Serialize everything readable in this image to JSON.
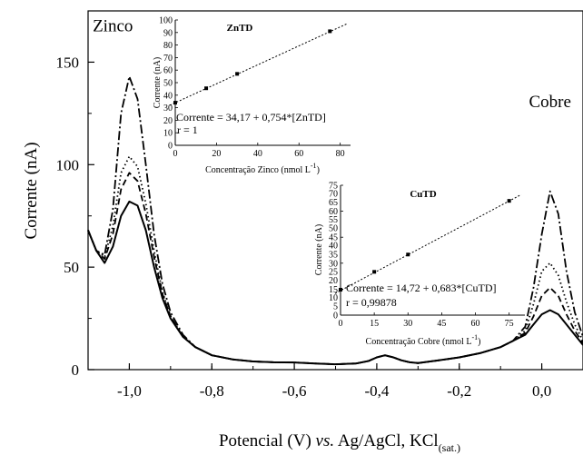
{
  "chart_data": [
    {
      "type": "line",
      "title": "",
      "xlabel": "Potencial (V) vs. Ag/AgCl, KCl(sat.)",
      "ylabel": "Corrente (nA)",
      "xlim": [
        -1.1,
        0.1
      ],
      "ylim": [
        0,
        175
      ],
      "xticks": [
        -1.0,
        -0.8,
        -0.6,
        -0.4,
        -0.2,
        0.0
      ],
      "xtick_labels": [
        "-1,0",
        "-0,8",
        "-0,6",
        "-0,4",
        "-0,2",
        "0,0"
      ],
      "yticks": [
        0,
        50,
        100,
        150
      ],
      "ytick_labels": [
        "0",
        "50",
        "100",
        "150"
      ],
      "annotations": [
        {
          "text": "Zinco",
          "x": -1.04,
          "y": 165
        },
        {
          "text": "Cobre",
          "x": 0.02,
          "y": 128
        }
      ],
      "series": [
        {
          "style": "solid",
          "x": [
            -1.1,
            -1.08,
            -1.06,
            -1.04,
            -1.02,
            -1.0,
            -0.98,
            -0.96,
            -0.94,
            -0.92,
            -0.9,
            -0.87,
            -0.84,
            -0.8,
            -0.75,
            -0.7,
            -0.65,
            -0.6,
            -0.55,
            -0.5,
            -0.45,
            -0.42,
            -0.4,
            -0.38,
            -0.36,
            -0.34,
            -0.32,
            -0.3,
            -0.25,
            -0.2,
            -0.15,
            -0.1,
            -0.07,
            -0.04,
            -0.02,
            0.0,
            0.02,
            0.04,
            0.06,
            0.08,
            0.1
          ],
          "y": [
            68,
            58,
            52,
            60,
            75,
            82,
            80,
            68,
            50,
            35,
            25,
            16,
            11,
            7,
            5,
            4,
            3.6,
            3.5,
            3,
            2.6,
            3,
            4.2,
            6,
            7,
            6,
            4.5,
            3.6,
            3.2,
            4.5,
            6,
            8,
            11,
            14,
            17,
            22,
            27,
            29,
            27,
            22,
            17,
            12
          ]
        },
        {
          "style": "dashed",
          "x": [
            -1.1,
            -1.08,
            -1.06,
            -1.04,
            -1.02,
            -1.0,
            -0.98,
            -0.96,
            -0.94,
            -0.92,
            -0.9,
            -0.87,
            -0.84,
            -0.8,
            -0.75,
            -0.7,
            -0.65,
            -0.6,
            -0.55,
            -0.5,
            -0.45,
            -0.42,
            -0.4,
            -0.38,
            -0.36,
            -0.34,
            -0.32,
            -0.3,
            -0.25,
            -0.2,
            -0.15,
            -0.1,
            -0.07,
            -0.04,
            -0.02,
            0.0,
            0.02,
            0.04,
            0.06,
            0.08,
            0.1
          ],
          "y": [
            68,
            58,
            54,
            66,
            88,
            96,
            92,
            76,
            55,
            37,
            26,
            16,
            11,
            7,
            5,
            4,
            3.6,
            3.5,
            3,
            2.6,
            3,
            4.2,
            6,
            7,
            6,
            4.5,
            3.6,
            3.2,
            4.5,
            6,
            8,
            11,
            14,
            18,
            26,
            36,
            40,
            36,
            27,
            19,
            13
          ]
        },
        {
          "style": "dotted",
          "x": [
            -1.1,
            -1.08,
            -1.06,
            -1.04,
            -1.02,
            -1.0,
            -0.98,
            -0.96,
            -0.94,
            -0.92,
            -0.9,
            -0.87,
            -0.84,
            -0.8,
            -0.75,
            -0.7,
            -0.65,
            -0.6,
            -0.55,
            -0.5,
            -0.45,
            -0.42,
            -0.4,
            -0.38,
            -0.36,
            -0.34,
            -0.32,
            -0.3,
            -0.25,
            -0.2,
            -0.15,
            -0.1,
            -0.07,
            -0.04,
            -0.02,
            0.0,
            0.02,
            0.04,
            0.06,
            0.08,
            0.1
          ],
          "y": [
            68,
            58,
            55,
            70,
            96,
            104,
            99,
            81,
            58,
            38,
            26,
            16,
            11,
            7,
            5,
            4,
            3.6,
            3.5,
            3,
            2.6,
            3,
            4.2,
            6,
            7,
            6,
            4.5,
            3.6,
            3.2,
            4.5,
            6,
            8,
            11,
            14,
            19,
            32,
            48,
            52,
            46,
            33,
            22,
            14
          ]
        },
        {
          "style": "dashdot",
          "x": [
            -1.1,
            -1.08,
            -1.06,
            -1.04,
            -1.02,
            -1.0,
            -0.98,
            -0.96,
            -0.94,
            -0.92,
            -0.9,
            -0.87,
            -0.84,
            -0.8,
            -0.75,
            -0.7,
            -0.65,
            -0.6,
            -0.55,
            -0.5,
            -0.45,
            -0.42,
            -0.4,
            -0.38,
            -0.36,
            -0.34,
            -0.32,
            -0.3,
            -0.25,
            -0.2,
            -0.15,
            -0.1,
            -0.07,
            -0.04,
            -0.02,
            0.0,
            0.02,
            0.04,
            0.06,
            0.08,
            0.1
          ],
          "y": [
            68,
            58,
            56,
            78,
            125,
            143,
            132,
            100,
            66,
            42,
            28,
            17,
            11,
            7,
            5,
            4,
            3.6,
            3.5,
            3,
            2.6,
            3,
            4.2,
            6,
            7,
            6,
            4.5,
            3.6,
            3.2,
            4.5,
            6,
            8,
            11,
            14,
            21,
            40,
            66,
            87,
            76,
            48,
            28,
            16
          ]
        }
      ]
    },
    {
      "type": "scatter",
      "title": "ZnTD",
      "xlabel": "Concentração Zinco (nmol L",
      "xlabel_sup": "-1",
      "xlabel_close": ")",
      "ylabel": "Corrente (nA)",
      "xlim": [
        0,
        85
      ],
      "ylim": [
        0,
        100
      ],
      "xticks": [
        0,
        20,
        40,
        60,
        80
      ],
      "xtick_labels": [
        "0",
        "20",
        "40",
        "60",
        "80"
      ],
      "yticks": [
        0,
        10,
        20,
        30,
        40,
        50,
        60,
        70,
        80,
        90,
        100
      ],
      "ytick_labels": [
        "0",
        "10",
        "20",
        "30",
        "40",
        "50",
        "60",
        "70",
        "80",
        "90",
        "100"
      ],
      "x": [
        0,
        15,
        30,
        75
      ],
      "y": [
        34,
        45.5,
        57,
        91
      ],
      "fit": {
        "intercept": 34.17,
        "slope": 0.754
      },
      "equation": "Corrente = 34,17 + 0,754*[ZnTD]",
      "r_text": "r = 1"
    },
    {
      "type": "scatter",
      "title": "CuTD",
      "xlabel": "Concentração Cobre (nmol L",
      "xlabel_sup": "-1",
      "xlabel_close": ")",
      "ylabel": "Corrente (nA)",
      "xlim": [
        0,
        82
      ],
      "ylim": [
        0,
        75
      ],
      "xticks": [
        0,
        15,
        30,
        45,
        60,
        75
      ],
      "xtick_labels": [
        "0",
        "15",
        "30",
        "45",
        "60",
        "75"
      ],
      "yticks": [
        0,
        15,
        30,
        45,
        60,
        75
      ],
      "ytick_labels": [
        "0",
        "15",
        "30",
        "45",
        "60",
        "75"
      ],
      "minor_yticks": [
        5,
        10,
        20,
        25,
        35,
        40,
        50,
        55,
        65,
        70
      ],
      "minor_ytick_labels": [
        "5",
        "10",
        "20",
        "25",
        "35",
        "40",
        "50",
        "55",
        "65",
        "70"
      ],
      "x": [
        0,
        15,
        30,
        75
      ],
      "y": [
        14.7,
        25,
        35,
        66
      ],
      "fit": {
        "intercept": 14.72,
        "slope": 0.683
      },
      "equation": "Corrente = 14,72 + 0,683*[CuTD]",
      "r_text": "r = 0,99878"
    }
  ],
  "labels": {
    "x_title_main": "Potencial (V) ",
    "x_title_vs": "vs.",
    "x_title_rest": " Ag/AgCl, KCl",
    "x_title_sub": "(sat.)"
  }
}
